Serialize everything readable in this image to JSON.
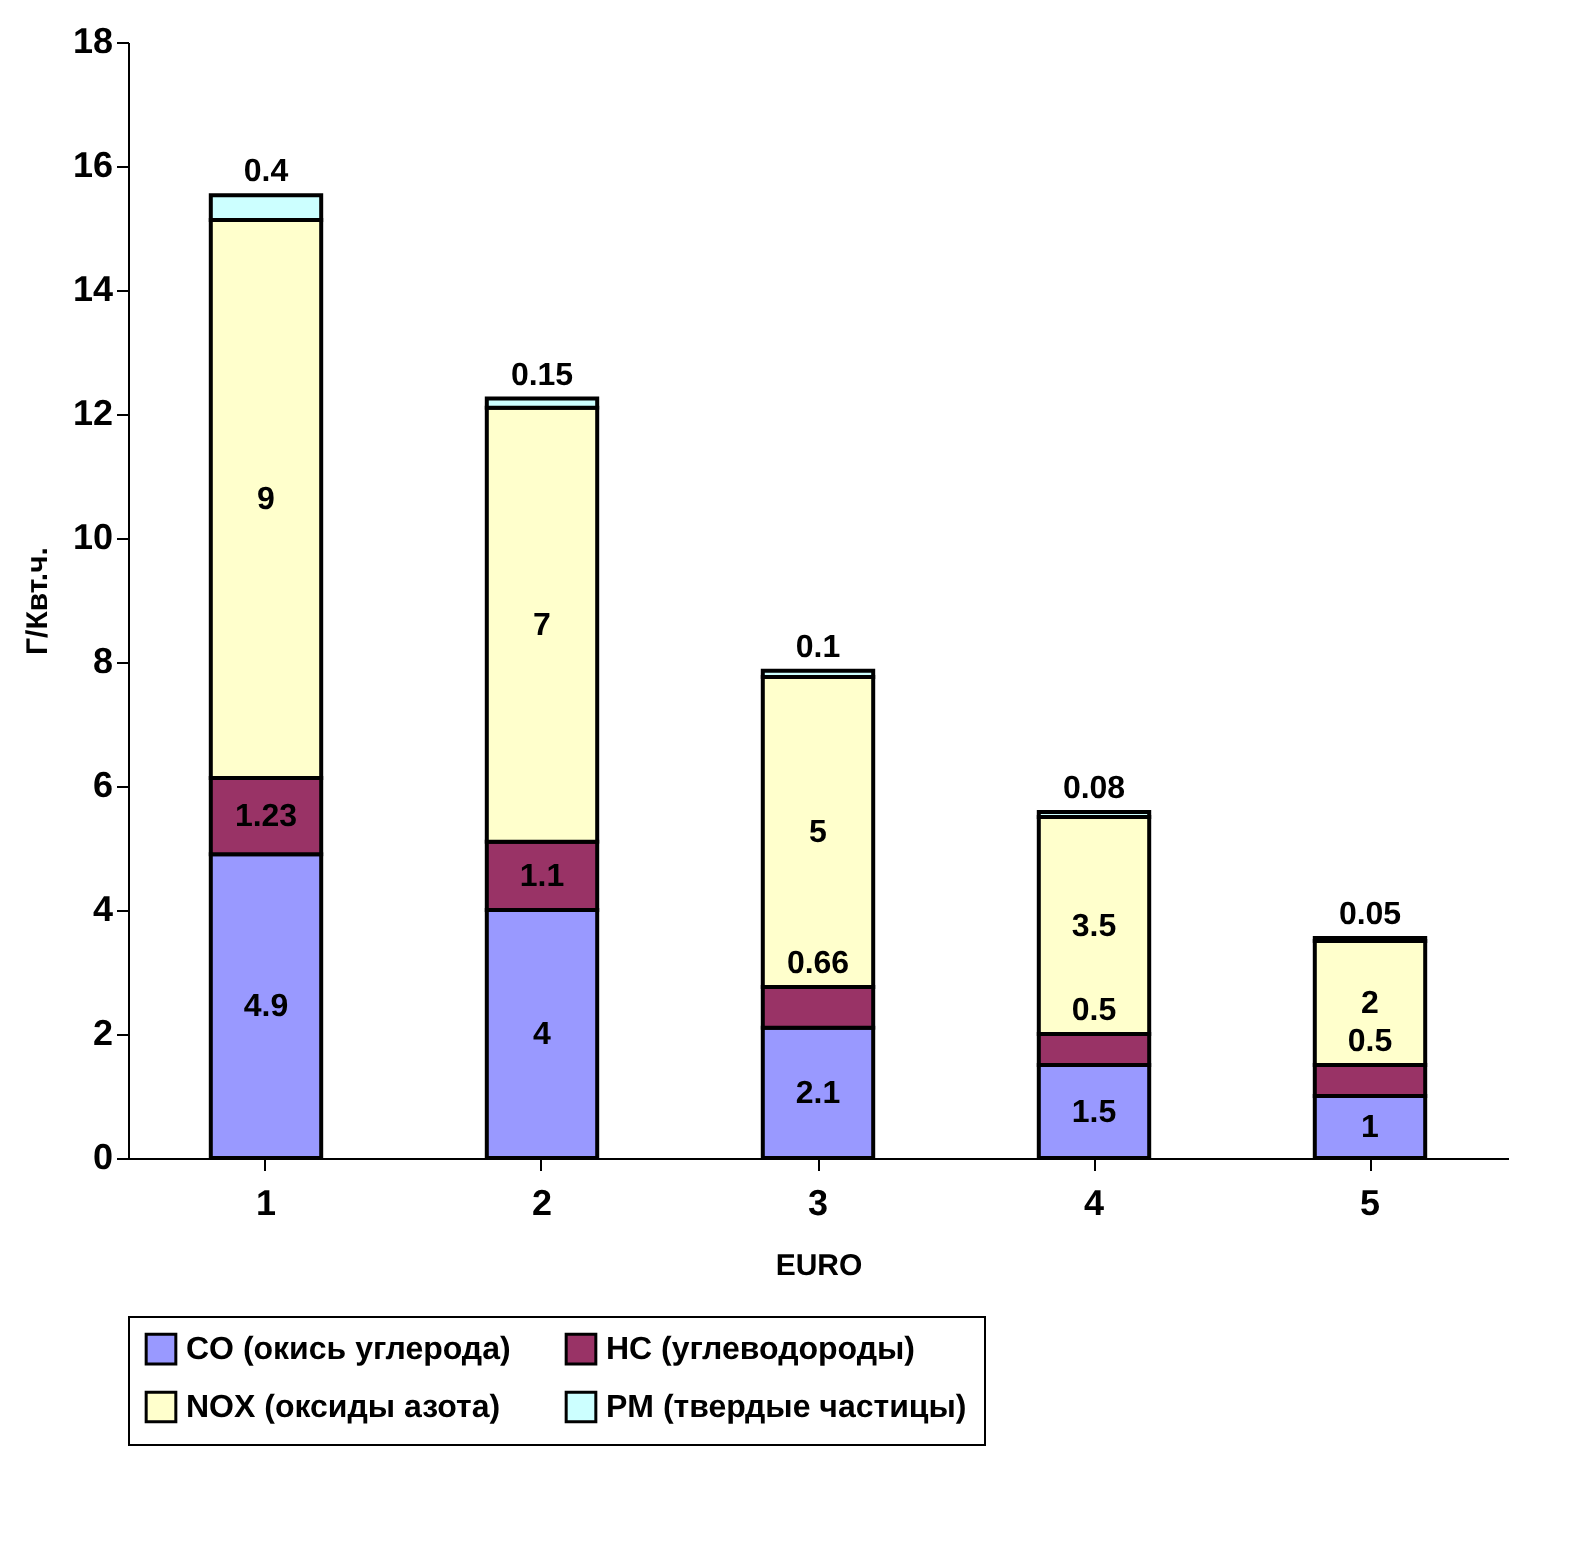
{
  "chart_data": {
    "type": "bar",
    "stacked": true,
    "xlabel": "EURO",
    "ylabel": "Г/Квт.ч.",
    "categories": [
      "1",
      "2",
      "3",
      "4",
      "5"
    ],
    "series": [
      {
        "name": "CO (окись углерода)",
        "color": "#9999ff",
        "values": [
          4.9,
          4,
          2.1,
          1.5,
          1
        ]
      },
      {
        "name": "HC (углеводороды)",
        "color": "#993366",
        "values": [
          1.23,
          1.1,
          0.66,
          0.5,
          0.5
        ]
      },
      {
        "name": "NOX (оксиды азота)",
        "color": "#ffffcc",
        "values": [
          9,
          7,
          5,
          3.5,
          2
        ]
      },
      {
        "name": "PM (твердые частицы)",
        "color": "#ccffff",
        "values": [
          0.4,
          0.15,
          0.1,
          0.08,
          0.05
        ]
      }
    ],
    "ylim": [
      0,
      18
    ],
    "yticks": [
      0,
      2,
      4,
      6,
      8,
      10,
      12,
      14,
      16,
      18
    ],
    "grid": false,
    "legend": "bottom",
    "data_labels": true
  }
}
